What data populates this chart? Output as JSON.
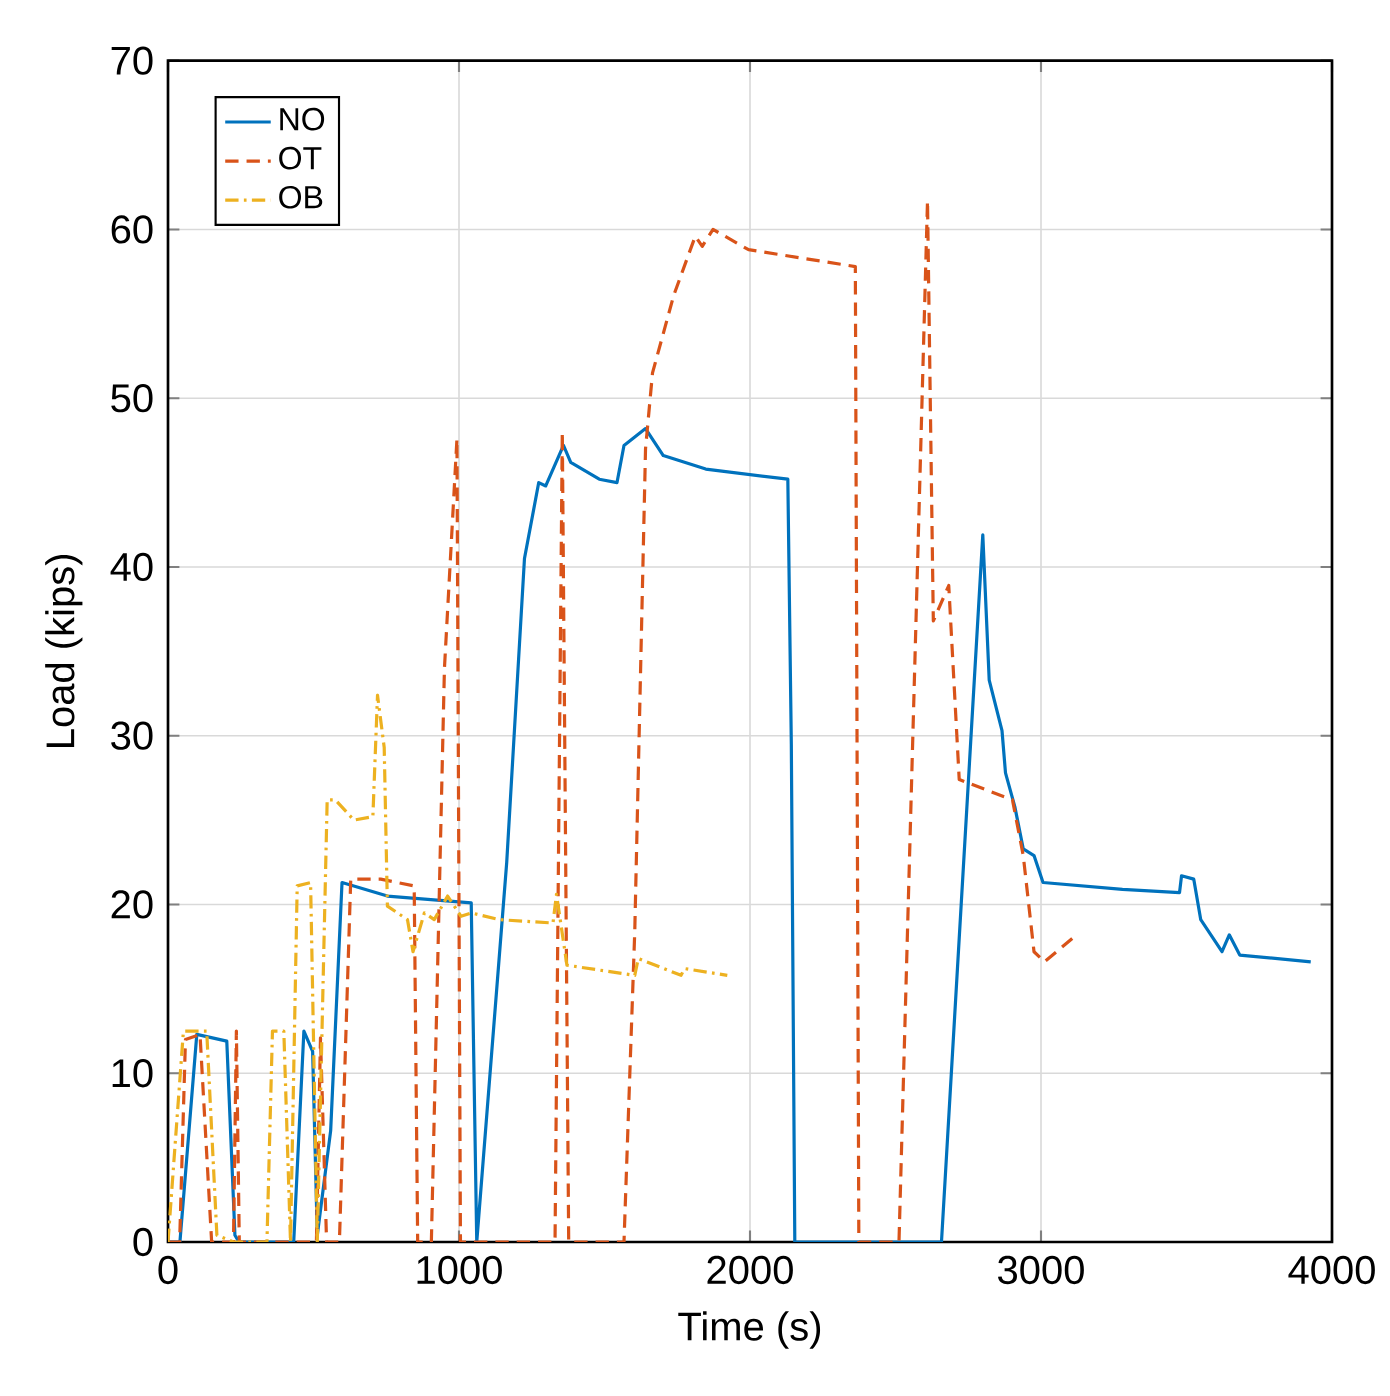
{
  "chart_data": {
    "type": "line",
    "xlabel": "Time (s)",
    "ylabel": "Load (kips)",
    "xlim": [
      0,
      4000
    ],
    "ylim": [
      0,
      70
    ],
    "xticks": [
      0,
      1000,
      2000,
      3000,
      4000
    ],
    "yticks": [
      0,
      10,
      20,
      30,
      40,
      50,
      60,
      70
    ],
    "grid": true,
    "legend": "top left",
    "marker": "none",
    "series": [
      {
        "name": "NO",
        "color": "#0072bd",
        "line_style": "solid",
        "x": [
          0,
          41,
          99,
          202,
          230,
          244,
          432,
          467,
          497,
          513,
          559,
          598,
          754,
          1042,
          1061,
          1164,
          1225,
          1274,
          1298,
          1359,
          1384,
          1482,
          1543,
          1567,
          1641,
          1702,
          1848,
          2130,
          2142,
          2154,
          2658,
          2800,
          2822,
          2866,
          2878,
          2910,
          2939,
          2976,
          3007,
          3280,
          3476,
          3483,
          3525,
          3549,
          3622,
          3647,
          3683,
          3927
        ],
        "values": [
          0,
          0,
          12.3,
          11.9,
          0.4,
          0,
          0,
          12.5,
          11.3,
          0.4,
          6.6,
          21.3,
          20.5,
          20.1,
          0,
          22.5,
          40.5,
          45,
          44.8,
          47.2,
          46.2,
          45.2,
          45,
          47.2,
          48.2,
          46.6,
          45.8,
          45.2,
          29.5,
          0,
          0,
          41.9,
          33.3,
          30.3,
          27.8,
          25.8,
          23.3,
          22.9,
          21.3,
          20.9,
          20.7,
          21.7,
          21.5,
          19.1,
          17.2,
          18.2,
          17,
          16.6
        ]
      },
      {
        "name": "OT",
        "color": "#d95319",
        "line_style": "dashed",
        "x": [
          0,
          40,
          60,
          110,
          150,
          225,
          235,
          245,
          510,
          524,
          545,
          589,
          628,
          731,
          846,
          858,
          905,
          950,
          993,
          1005,
          1330,
          1355,
          1377,
          1567,
          1604,
          1641,
          1665,
          1738,
          1812,
          1836,
          1873,
          1995,
          2362,
          2374,
          2512,
          2610,
          2630,
          2683,
          2719,
          2902,
          2939,
          2976,
          3012,
          3122
        ],
        "values": [
          0,
          0,
          12,
          12.3,
          0,
          0,
          12.5,
          0,
          0,
          12.1,
          0,
          0,
          21.5,
          21.5,
          21.1,
          0,
          0,
          34,
          47.6,
          0,
          0,
          48,
          0,
          0,
          18.4,
          47,
          51.5,
          56.1,
          59.6,
          59,
          60,
          58.8,
          57.8,
          0,
          0,
          61.7,
          36.8,
          38.9,
          27.4,
          26.2,
          22.9,
          17.2,
          16.6,
          18.2
        ]
      },
      {
        "name": "OB",
        "color": "#edb120",
        "line_style": "dashdot",
        "x": [
          0,
          53,
          133,
          168,
          225,
          340,
          359,
          398,
          421,
          444,
          490,
          513,
          547,
          575,
          639,
          704,
          720,
          743,
          754,
          823,
          842,
          881,
          915,
          961,
          1007,
          1042,
          1139,
          1323,
          1335,
          1371,
          1604,
          1616,
          1763,
          1775,
          1922
        ],
        "values": [
          0,
          12.5,
          12.5,
          0.4,
          0,
          0,
          12.5,
          12.5,
          0,
          21.1,
          21.3,
          0,
          26.2,
          26.2,
          25,
          25.2,
          32.4,
          29.3,
          19.9,
          19.1,
          17.2,
          19.5,
          19.1,
          20.5,
          19.3,
          19.5,
          19.1,
          18.9,
          20.6,
          16.4,
          15.8,
          16.8,
          15.8,
          16.2,
          15.8
        ]
      }
    ]
  }
}
